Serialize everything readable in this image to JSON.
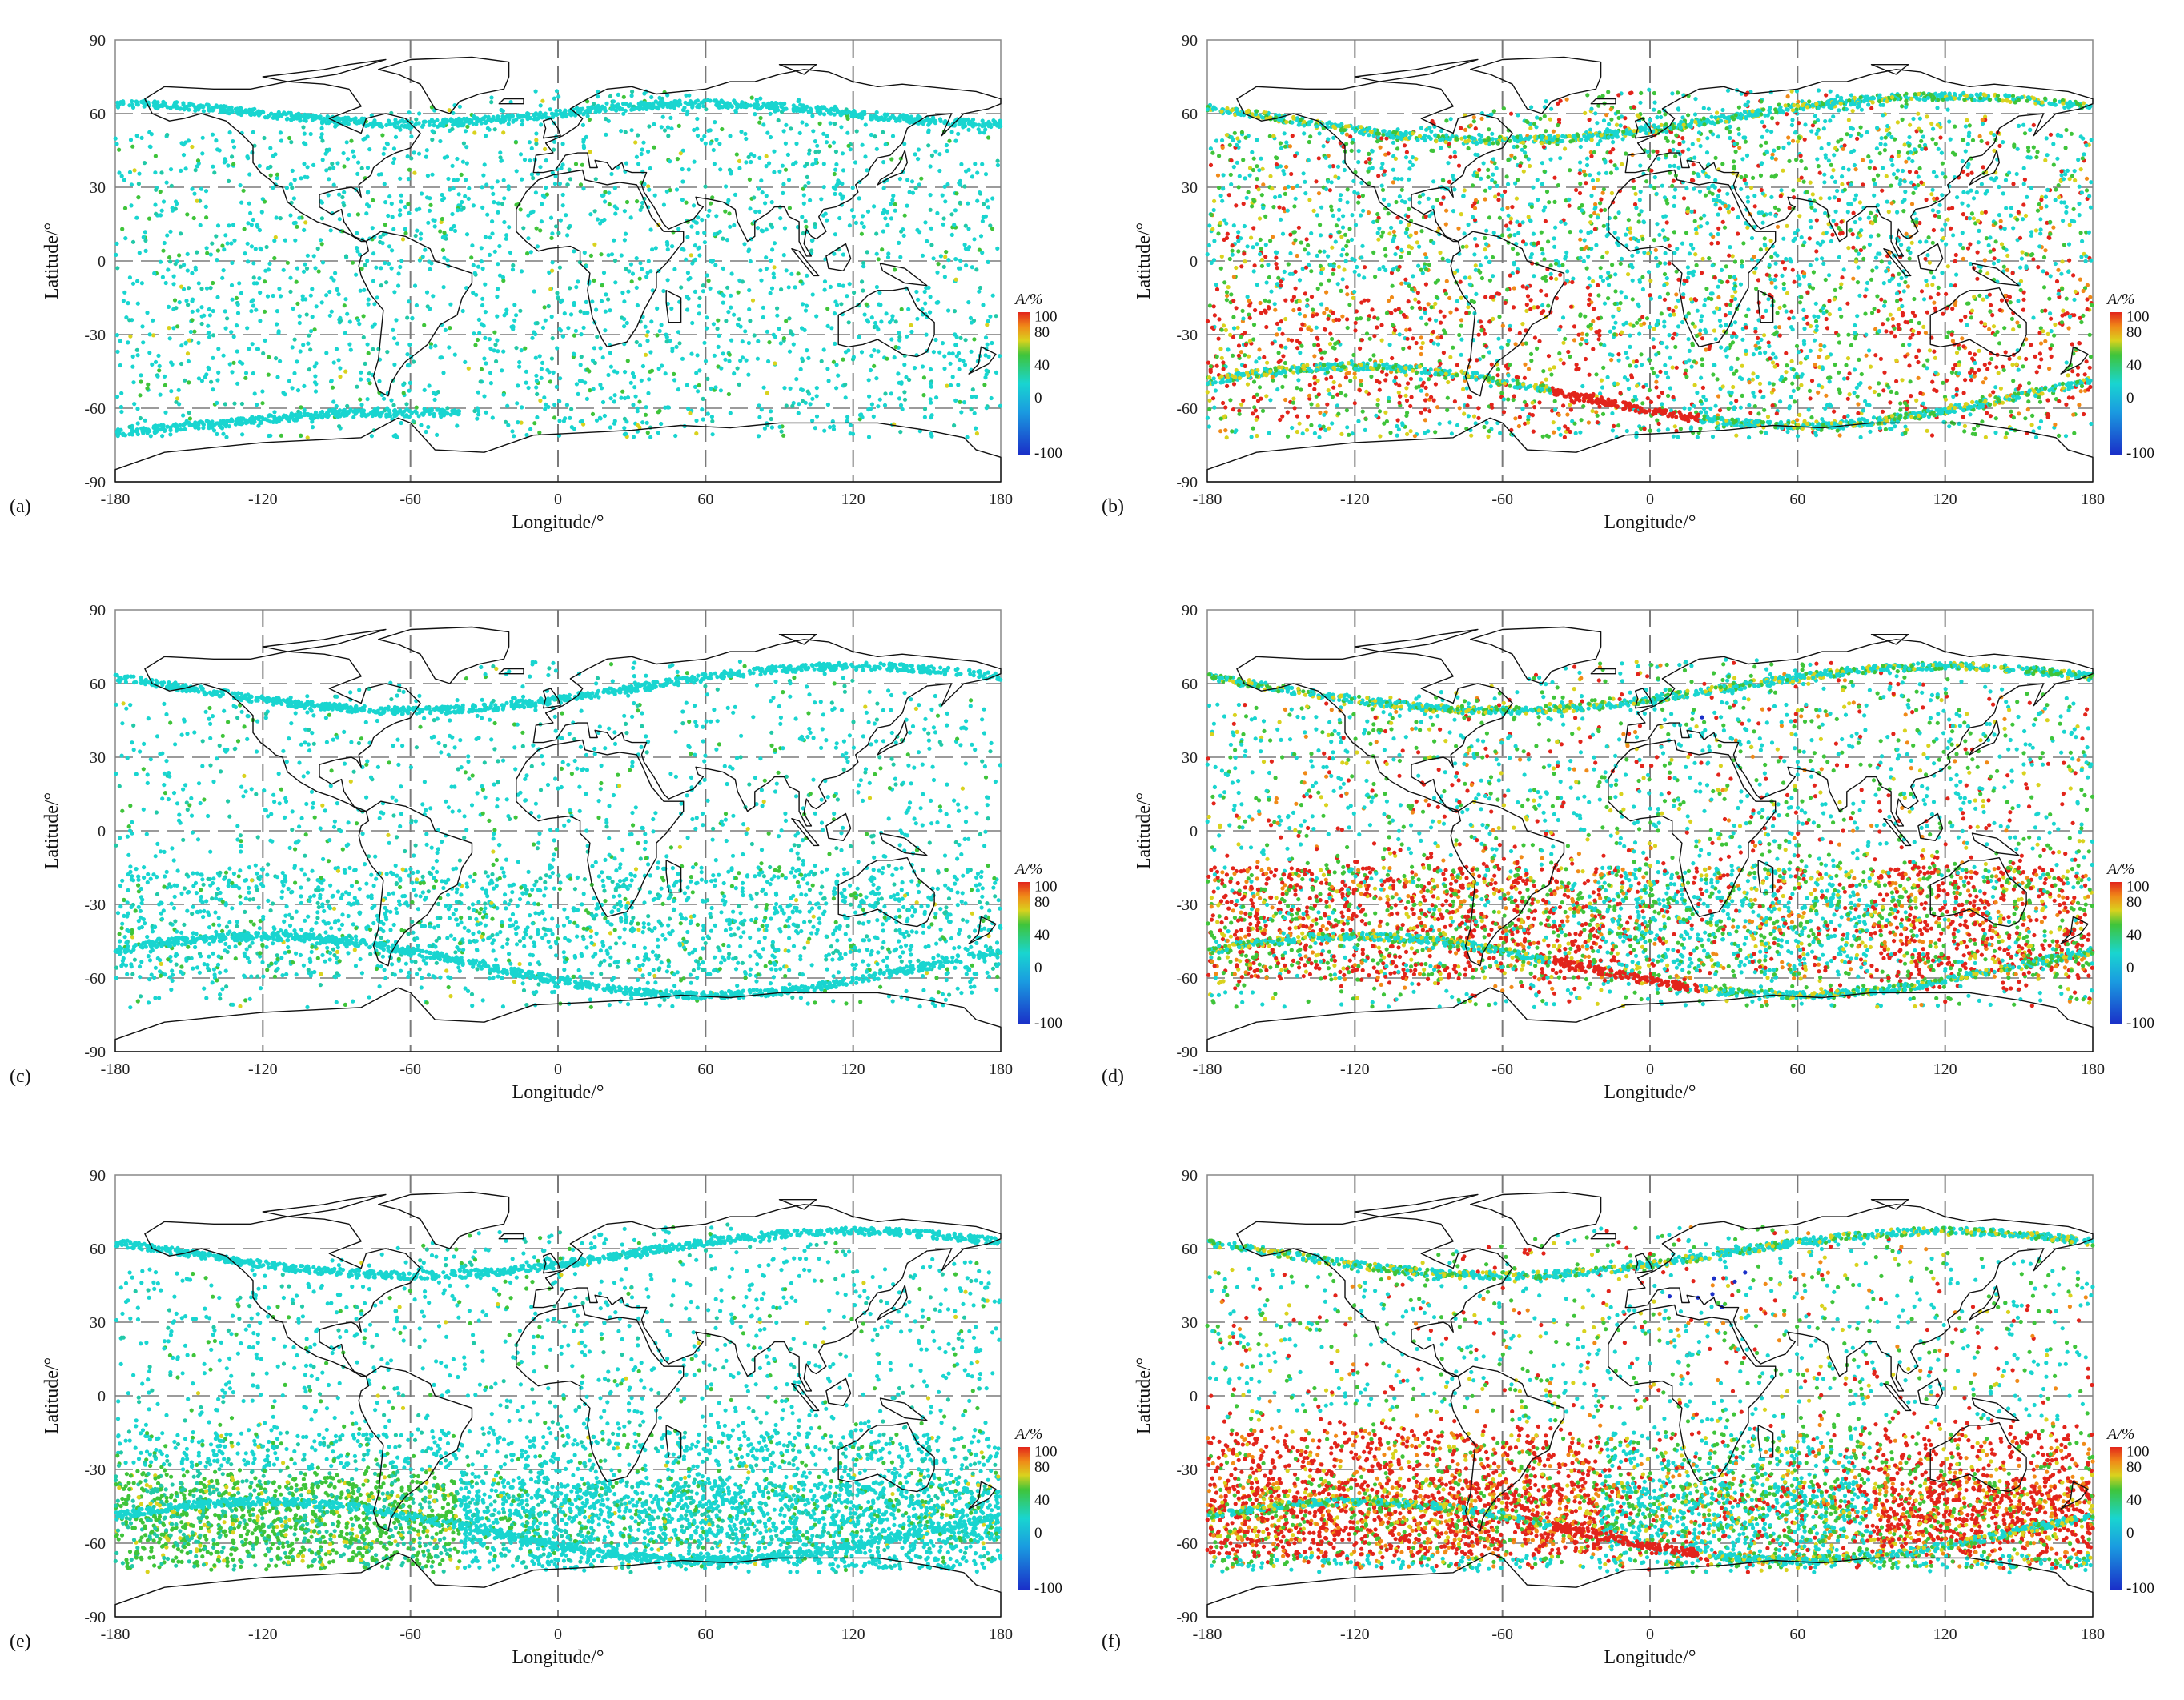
{
  "colors": {
    "cyan": "#19d5d0",
    "teal": "#22c9a8",
    "green": "#3fc43a",
    "yellow": "#d9d21e",
    "orange": "#f08a18",
    "red": "#e2241b",
    "blue": "#1a2fc8",
    "coast": "#111111",
    "grid": "#7a7a7a"
  },
  "axes": {
    "xlabel": "Longitude/°",
    "ylabel": "Latitude/°",
    "xticks": [
      "-180",
      "-120",
      "-60",
      "0",
      "60",
      "120",
      "180"
    ],
    "yticks": [
      "90",
      "60",
      "30",
      "0",
      "-30",
      "-60",
      "-90"
    ],
    "xlim": [
      -180,
      180
    ],
    "ylim": [
      -90,
      90
    ]
  },
  "colorbar": {
    "title": "A/%",
    "ticks": [
      "100",
      "80",
      "40",
      "0",
      "-100"
    ],
    "range": [
      -100,
      100
    ]
  },
  "panels": [
    {
      "label": "(a)"
    },
    {
      "label": "(b)"
    },
    {
      "label": "(c)"
    },
    {
      "label": "(d)"
    },
    {
      "label": "(e)"
    },
    {
      "label": "(f)"
    }
  ]
}
